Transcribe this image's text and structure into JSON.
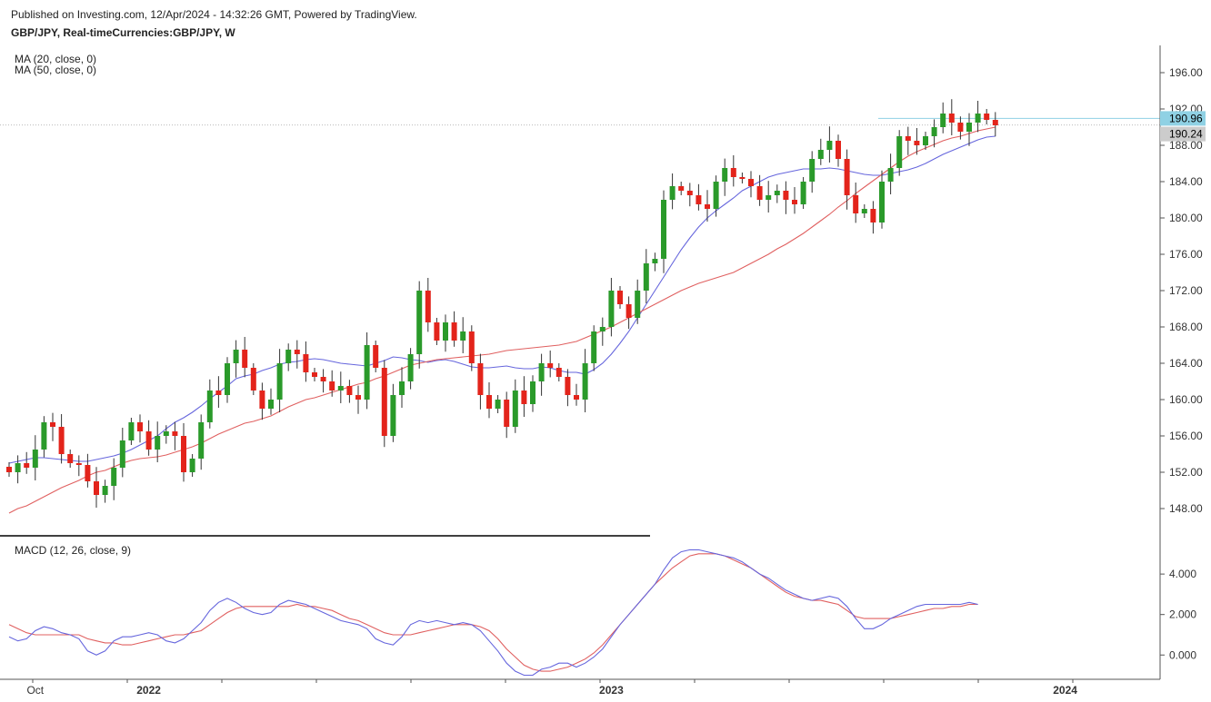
{
  "header": {
    "published": "Published on Investing.com, 12/Apr/2024 - 14:32:26 GMT, Powered by TradingView.",
    "symbol": "GBP/JPY, Real-timeCurrencies:GBP/JPY, W"
  },
  "legend": {
    "ma20": "MA (20, close, 0)",
    "ma50": "MA (50, close, 0)",
    "macd": "MACD (12, 26, close, 9)"
  },
  "price_tags": {
    "last": "190.96",
    "line": "190.24"
  },
  "colors": {
    "up": "#2a9a2a",
    "down": "#e3241b",
    "ma20": "#6666dd",
    "ma50": "#e06060",
    "macd": "#6666dd",
    "signal": "#e06060",
    "last_tag": "#8fd1e4",
    "line_tag": "#cccccc"
  },
  "chart_data": [
    {
      "type": "candlestick",
      "ylim": [
        145,
        199
      ],
      "yticks": [
        148,
        152,
        156,
        160,
        164,
        168,
        172,
        176,
        180,
        184,
        188,
        192,
        196
      ],
      "ytick_labels": [
        "148.00",
        "152.00",
        "156.00",
        "160.00",
        "164.00",
        "168.00",
        "172.00",
        "176.00",
        "180.00",
        "184.00",
        "188.00",
        "192.00",
        "196.00"
      ],
      "xticks": [
        {
          "label": "Oct",
          "index": 3
        },
        {
          "label": "2022",
          "index": 16
        },
        {
          "label": "2023",
          "index": 69
        },
        {
          "label": "2024",
          "index": 121
        }
      ],
      "close": [
        152.0,
        153.0,
        152.5,
        154.5,
        157.5,
        157.0,
        154.0,
        153.0,
        152.8,
        151.0,
        149.5,
        150.5,
        152.5,
        155.5,
        157.5,
        156.5,
        154.5,
        156.0,
        156.5,
        156.0,
        152.0,
        153.5,
        157.5,
        161.0,
        160.5,
        164.0,
        165.5,
        163.5,
        161.0,
        159.0,
        160.0,
        164.0,
        165.5,
        165.0,
        163.0,
        162.5,
        162.0,
        161.0,
        161.5,
        160.5,
        160.0,
        166.0,
        163.5,
        156.0,
        160.5,
        162.0,
        165.0,
        172.0,
        168.5,
        166.5,
        168.5,
        166.5,
        167.5,
        164.0,
        160.5,
        159.0,
        160.0,
        157.0,
        161.0,
        159.5,
        162.0,
        164.0,
        163.5,
        162.5,
        160.5,
        160.0,
        164.0,
        167.5,
        168.0,
        172.0,
        170.5,
        169.0,
        172.0,
        175.0,
        175.5,
        182.0,
        183.5,
        183.0,
        182.5,
        181.5,
        181.0,
        184.0,
        185.5,
        184.5,
        184.3,
        183.5,
        182.0,
        182.5,
        183.0,
        182.0,
        181.5,
        184.0,
        186.5,
        187.5,
        188.5,
        186.5,
        182.5,
        180.5,
        181.0,
        179.5,
        184.0,
        185.5,
        189.0,
        188.5,
        188.0,
        189.0,
        190.0,
        191.5,
        190.5,
        189.5,
        190.5,
        191.5,
        190.8,
        190.2
      ],
      "ma20": [
        153.0,
        153.2,
        153.4,
        153.6,
        153.6,
        153.5,
        153.4,
        153.3,
        153.2,
        153.2,
        153.4,
        153.6,
        153.8,
        154.1,
        154.5,
        155.0,
        155.5,
        156.0,
        156.8,
        157.5,
        158.0,
        158.6,
        159.3,
        160.1,
        160.8,
        161.5,
        162.3,
        162.6,
        162.8,
        163.2,
        163.5,
        163.9,
        164.1,
        164.2,
        164.4,
        164.5,
        164.4,
        164.2,
        164.0,
        163.9,
        163.8,
        163.7,
        164.0,
        164.3,
        164.7,
        164.6,
        164.4,
        164.3,
        164.1,
        164.3,
        164.4,
        164.2,
        163.9,
        163.6,
        163.5,
        163.5,
        163.6,
        163.7,
        163.5,
        163.4,
        163.4,
        163.6,
        163.5,
        163.2,
        163.0,
        163.0,
        162.8,
        163.3,
        164.0,
        165.0,
        166.2,
        167.5,
        169.0,
        170.5,
        172.0,
        173.5,
        175.0,
        176.5,
        177.8,
        179.0,
        180.0,
        180.8,
        181.5,
        182.2,
        183.0,
        183.5,
        184.0,
        184.5,
        184.8,
        185.0,
        185.2,
        185.4,
        185.4,
        185.4,
        185.5,
        185.4,
        185.2,
        185.0,
        184.8,
        184.7,
        184.7,
        184.9,
        185.1,
        185.3,
        185.6,
        186.0,
        186.5,
        187.0,
        187.4,
        187.8,
        188.2,
        188.6,
        188.9,
        189.0
      ],
      "ma50": [
        147.5,
        148.0,
        148.3,
        148.8,
        149.3,
        149.8,
        150.3,
        150.7,
        151.1,
        151.6,
        152.0,
        152.2,
        152.6,
        153.0,
        153.3,
        153.5,
        153.6,
        153.7,
        153.9,
        154.2,
        154.5,
        154.8,
        155.2,
        155.7,
        156.2,
        156.6,
        157.0,
        157.4,
        157.6,
        157.9,
        158.2,
        158.7,
        159.2,
        159.6,
        160.0,
        160.2,
        160.5,
        160.8,
        161.1,
        161.4,
        161.7,
        161.9,
        162.3,
        162.6,
        163.0,
        163.4,
        163.8,
        164.0,
        164.2,
        164.4,
        164.5,
        164.6,
        164.7,
        164.8,
        164.9,
        165.0,
        165.2,
        165.4,
        165.5,
        165.6,
        165.7,
        165.8,
        165.9,
        166.0,
        166.2,
        166.4,
        166.8,
        167.2,
        167.6,
        168.0,
        168.5,
        169.0,
        169.5,
        170.0,
        170.5,
        171.0,
        171.5,
        172.0,
        172.4,
        172.8,
        173.1,
        173.4,
        173.7,
        174.0,
        174.5,
        175.0,
        175.5,
        176.0,
        176.6,
        177.1,
        177.7,
        178.3,
        179.0,
        179.7,
        180.4,
        181.2,
        181.9,
        182.7,
        183.4,
        184.1,
        184.8,
        185.5,
        186.2,
        186.8,
        187.3,
        187.7,
        188.1,
        188.5,
        188.8,
        189.0,
        189.3,
        189.6,
        189.8,
        190.0
      ],
      "last_price": 190.96,
      "line_price": 190.24
    },
    {
      "type": "line",
      "ylim": [
        -1.2,
        5.8
      ],
      "yticks": [
        0,
        2,
        4
      ],
      "ytick_labels": [
        "0.000",
        "2.000",
        "4.000"
      ],
      "series": [
        {
          "role": "macd",
          "values": [
            0.9,
            0.7,
            0.8,
            1.2,
            1.4,
            1.3,
            1.1,
            1.0,
            0.8,
            0.2,
            0.0,
            0.2,
            0.7,
            0.9,
            0.9,
            1.0,
            1.1,
            1.0,
            0.7,
            0.6,
            0.8,
            1.2,
            1.6,
            2.2,
            2.6,
            2.8,
            2.6,
            2.3,
            2.1,
            2.0,
            2.1,
            2.5,
            2.7,
            2.6,
            2.5,
            2.3,
            2.1,
            1.9,
            1.7,
            1.6,
            1.5,
            1.3,
            0.8,
            0.6,
            0.5,
            0.9,
            1.5,
            1.7,
            1.6,
            1.7,
            1.6,
            1.5,
            1.6,
            1.5,
            1.2,
            0.7,
            0.2,
            -0.4,
            -0.8,
            -1.0,
            -1.0,
            -0.7,
            -0.6,
            -0.4,
            -0.4,
            -0.6,
            -0.4,
            -0.1,
            0.3,
            0.9,
            1.5,
            2.0,
            2.5,
            3.0,
            3.5,
            4.2,
            4.8,
            5.1,
            5.2,
            5.2,
            5.1,
            5.0,
            4.9,
            4.8,
            4.6,
            4.3,
            4.0,
            3.8,
            3.5,
            3.2,
            3.0,
            2.8,
            2.7,
            2.8,
            2.9,
            2.8,
            2.4,
            1.8,
            1.3,
            1.3,
            1.5,
            1.8,
            2.0,
            2.2,
            2.4,
            2.5,
            2.5,
            2.5,
            2.5,
            2.5,
            2.6,
            2.5
          ]
        },
        {
          "role": "signal",
          "values": [
            1.5,
            1.3,
            1.1,
            1.0,
            1.0,
            1.0,
            1.0,
            1.0,
            1.0,
            0.8,
            0.7,
            0.6,
            0.6,
            0.5,
            0.5,
            0.6,
            0.7,
            0.8,
            0.9,
            1.0,
            1.0,
            1.1,
            1.2,
            1.5,
            1.8,
            2.1,
            2.3,
            2.4,
            2.4,
            2.4,
            2.4,
            2.4,
            2.4,
            2.5,
            2.4,
            2.4,
            2.3,
            2.2,
            2.0,
            1.8,
            1.7,
            1.5,
            1.3,
            1.1,
            1.0,
            1.0,
            1.0,
            1.1,
            1.2,
            1.3,
            1.4,
            1.5,
            1.5,
            1.5,
            1.4,
            1.2,
            0.8,
            0.3,
            -0.1,
            -0.5,
            -0.7,
            -0.8,
            -0.8,
            -0.7,
            -0.6,
            -0.4,
            -0.2,
            0.1,
            0.5,
            1.0,
            1.5,
            2.0,
            2.5,
            3.0,
            3.5,
            3.9,
            4.3,
            4.6,
            4.9,
            5.0,
            5.0,
            5.0,
            4.9,
            4.7,
            4.5,
            4.3,
            4.0,
            3.7,
            3.4,
            3.1,
            2.9,
            2.8,
            2.7,
            2.7,
            2.6,
            2.5,
            2.2,
            1.9,
            1.8,
            1.8,
            1.8,
            1.8,
            1.9,
            2.0,
            2.1,
            2.2,
            2.3,
            2.3,
            2.4,
            2.4,
            2.5,
            2.5
          ]
        }
      ]
    }
  ]
}
